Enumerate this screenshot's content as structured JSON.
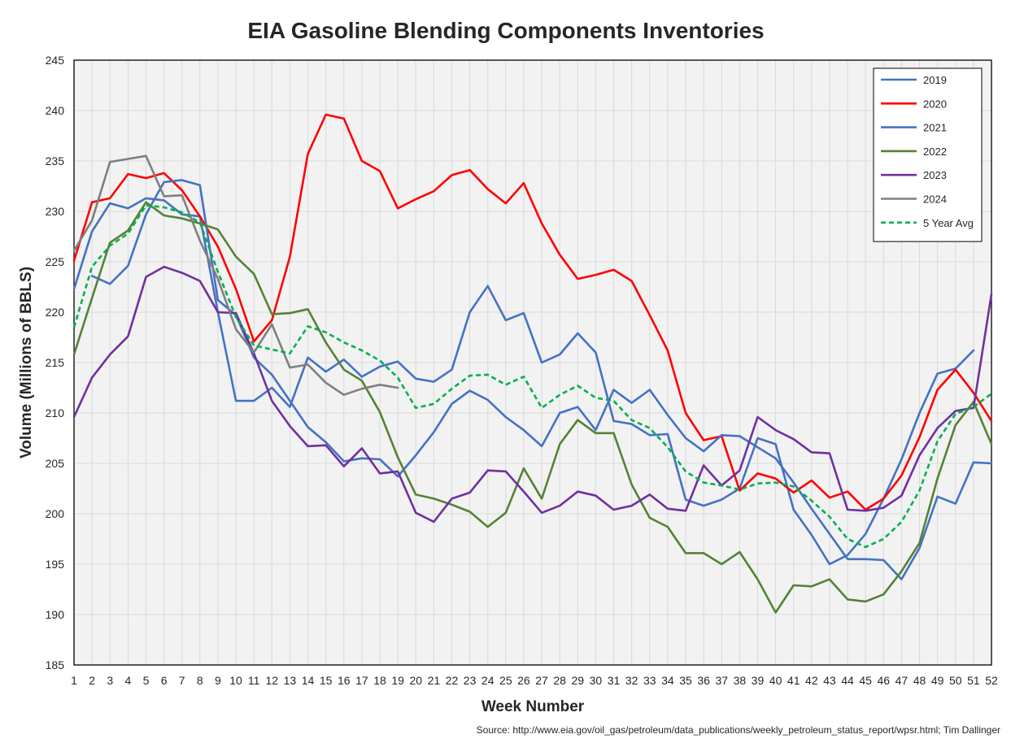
{
  "chart_data": {
    "type": "line",
    "title": "EIA Gasoline Blending Components Inventories",
    "xlabel": "Week Number",
    "ylabel": "Volume (Millions of BBLS)",
    "source": "Source: http://www.eia.gov/oil_gas/petroleum/data_publications/weekly_petroleum_status_report/wpsr.html; Tim Dallinger",
    "xlim": [
      1,
      52
    ],
    "ylim": [
      185,
      245
    ],
    "y_ticks": [
      185,
      190,
      195,
      200,
      205,
      210,
      215,
      220,
      225,
      230,
      235,
      240,
      245
    ],
    "x": [
      1,
      2,
      3,
      4,
      5,
      6,
      7,
      8,
      9,
      10,
      11,
      12,
      13,
      14,
      15,
      16,
      17,
      18,
      19,
      20,
      21,
      22,
      23,
      24,
      25,
      26,
      27,
      28,
      29,
      30,
      31,
      32,
      33,
      34,
      35,
      36,
      37,
      38,
      39,
      40,
      41,
      42,
      43,
      44,
      45,
      46,
      47,
      48,
      49,
      50,
      51,
      52
    ],
    "grid": true,
    "legend_position": "top-right",
    "plot_background": "#f2f2f2",
    "series": [
      {
        "name": "2019",
        "color": "#4472c4",
        "dashed": false,
        "values": [
          222.3,
          228.0,
          230.8,
          230.3,
          231.3,
          231.1,
          229.7,
          229.5,
          220.0,
          211.2,
          211.2,
          212.5,
          210.6,
          215.5,
          214.1,
          215.3,
          213.6,
          214.6,
          215.1,
          213.4,
          213.1,
          214.3,
          220.0,
          222.6,
          219.2,
          219.9,
          215.0,
          215.8,
          217.9,
          216.0,
          209.2,
          208.9,
          207.8,
          207.9,
          201.4,
          200.8,
          201.4,
          202.5,
          207.5,
          206.9,
          200.4,
          197.9,
          195.0,
          195.9,
          198.0,
          201.5,
          205.4,
          210.0,
          213.9,
          214.4,
          216.2,
          null
        ]
      },
      {
        "name": "2020",
        "color": "#ff0000",
        "dashed": false,
        "values": [
          225.1,
          230.9,
          231.3,
          233.7,
          233.3,
          233.8,
          232.1,
          229.5,
          226.5,
          222.3,
          217.1,
          219.2,
          225.5,
          235.7,
          239.6,
          239.2,
          235.0,
          234.0,
          230.3,
          231.2,
          232.0,
          233.6,
          234.1,
          232.2,
          230.8,
          232.8,
          228.8,
          225.7,
          223.3,
          223.7,
          224.2,
          223.1,
          219.7,
          216.2,
          210.0,
          207.3,
          207.7,
          202.3,
          204.0,
          203.5,
          202.1,
          203.3,
          201.6,
          202.2,
          200.4,
          201.5,
          203.8,
          207.6,
          212.3,
          214.3,
          212.0,
          209.2
        ]
      },
      {
        "name": "2021",
        "color": "#4472c4",
        "dashed": false,
        "values": [
          null,
          223.6,
          222.8,
          224.6,
          229.7,
          232.9,
          233.1,
          232.6,
          221.2,
          219.7,
          215.5,
          213.8,
          211.2,
          208.6,
          207.1,
          205.2,
          205.5,
          205.4,
          203.7,
          205.8,
          208.1,
          210.9,
          212.2,
          211.3,
          209.6,
          208.3,
          206.7,
          210.0,
          210.6,
          208.3,
          212.3,
          211.0,
          212.3,
          209.8,
          207.5,
          206.2,
          207.8,
          207.7,
          206.6,
          205.5,
          203.1,
          200.5,
          198.0,
          195.5,
          195.5,
          195.4,
          193.5,
          196.6,
          201.7,
          201.0,
          205.1,
          205.0
        ]
      },
      {
        "name": "2022",
        "color": "#548235",
        "dashed": false,
        "values": [
          215.8,
          221.4,
          226.9,
          228.1,
          230.9,
          229.6,
          229.3,
          228.8,
          228.2,
          225.5,
          223.8,
          219.8,
          219.9,
          220.3,
          217.0,
          214.3,
          213.2,
          210.1,
          205.6,
          201.9,
          201.5,
          200.9,
          200.2,
          198.7,
          200.1,
          204.5,
          201.5,
          206.9,
          209.3,
          208.0,
          208.0,
          202.9,
          199.6,
          198.7,
          196.1,
          196.1,
          195.0,
          196.2,
          193.5,
          190.2,
          192.9,
          192.8,
          193.5,
          191.5,
          191.3,
          192.0,
          194.3,
          197.1,
          203.5,
          208.8,
          211.1,
          206.9
        ]
      },
      {
        "name": "2023",
        "color": "#7030a0",
        "dashed": false,
        "values": [
          209.6,
          213.5,
          215.8,
          217.6,
          223.5,
          224.5,
          223.9,
          223.1,
          220.0,
          219.9,
          215.9,
          211.2,
          208.7,
          206.7,
          206.8,
          204.7,
          206.5,
          204.0,
          204.2,
          200.1,
          199.2,
          201.5,
          202.1,
          204.3,
          204.2,
          202.2,
          200.1,
          200.8,
          202.2,
          201.8,
          200.4,
          200.8,
          201.9,
          200.5,
          200.3,
          204.8,
          202.8,
          204.3,
          209.6,
          208.3,
          207.4,
          206.1,
          206.0,
          200.4,
          200.3,
          200.6,
          201.8,
          205.8,
          208.5,
          210.2,
          210.5,
          221.8
        ]
      },
      {
        "name": "2024",
        "color": "#7f7f7f",
        "dashed": false,
        "values": [
          226.1,
          229.1,
          234.9,
          235.2,
          235.5,
          231.5,
          231.6,
          227.1,
          223.3,
          218.3,
          216.0,
          218.8,
          214.5,
          214.8,
          213.0,
          211.8,
          212.4,
          212.8,
          212.5,
          null,
          null,
          null,
          null,
          null,
          null,
          null,
          null,
          null,
          null,
          null,
          null,
          null,
          null,
          null,
          null,
          null,
          null,
          null,
          null,
          null,
          null,
          null,
          null,
          null,
          null,
          null,
          null,
          null,
          null,
          null,
          null,
          null
        ]
      },
      {
        "name": "5 Year Avg",
        "color": "#00b050",
        "dashed": true,
        "values": [
          218.5,
          224.5,
          226.6,
          227.8,
          230.6,
          230.4,
          229.9,
          228.9,
          224.0,
          219.5,
          216.7,
          216.3,
          215.9,
          218.6,
          218.0,
          217.0,
          216.2,
          215.2,
          213.5,
          210.5,
          210.9,
          212.4,
          213.7,
          213.8,
          212.8,
          213.6,
          210.5,
          211.8,
          212.7,
          211.5,
          211.2,
          209.3,
          208.5,
          206.6,
          204.2,
          203.1,
          202.8,
          202.4,
          203.0,
          203.1,
          202.7,
          201.3,
          199.7,
          197.5,
          196.7,
          197.5,
          199.2,
          202.3,
          207.2,
          209.9,
          210.6,
          211.9
        ]
      }
    ]
  }
}
